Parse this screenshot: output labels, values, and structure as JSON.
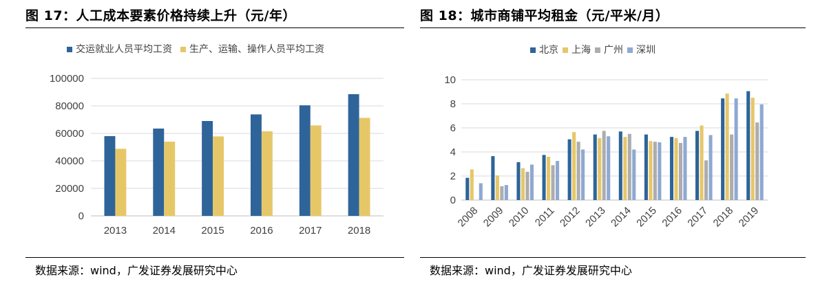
{
  "figures": [
    {
      "title": "图 17：人工成本要素价格持续上升（元/年）",
      "source": "数据来源：wind，广发证券发展研究中心"
    },
    {
      "title": "图 18：城市商铺平均租金（元/平米/月）",
      "source": "数据来源：wind，广发证券发展研究中心"
    }
  ],
  "chart_data": [
    {
      "type": "bar",
      "categories": [
        "2013",
        "2014",
        "2015",
        "2016",
        "2017",
        "2018"
      ],
      "series": [
        {
          "name": "交运就业人员平均工资",
          "color": "#2E6499",
          "values": [
            58000,
            63500,
            69000,
            73800,
            80400,
            88500
          ]
        },
        {
          "name": "生产、运输、操作人员平均工资",
          "color": "#E6C768",
          "values": [
            48800,
            54000,
            57800,
            61500,
            65800,
            71300
          ]
        }
      ],
      "ylim": [
        0,
        100000
      ],
      "yticks": [
        "0",
        "20000",
        "40000",
        "60000",
        "80000",
        "100000"
      ],
      "legend": "top",
      "grid": true
    },
    {
      "type": "bar",
      "categories": [
        "2008",
        "2009",
        "2010",
        "2011",
        "2012",
        "2013",
        "2014",
        "2015",
        "2016",
        "2017",
        "2018",
        "2019"
      ],
      "series": [
        {
          "name": "北京",
          "color": "#2E6499",
          "values": [
            1.85,
            3.65,
            3.15,
            3.75,
            5.05,
            5.45,
            5.7,
            5.45,
            5.25,
            5.75,
            8.45,
            9.05
          ]
        },
        {
          "name": "上海",
          "color": "#E6C768",
          "values": [
            2.55,
            2.05,
            2.65,
            3.6,
            5.65,
            5.15,
            5.25,
            4.9,
            5.15,
            6.2,
            8.85,
            8.5
          ]
        },
        {
          "name": "广州",
          "color": "#ADADAD",
          "values": [
            0.0,
            1.15,
            2.35,
            2.9,
            4.85,
            5.75,
            5.5,
            4.85,
            4.75,
            3.3,
            5.45,
            6.45
          ]
        },
        {
          "name": "深圳",
          "color": "#8EA9D2",
          "values": [
            1.4,
            1.25,
            2.95,
            3.25,
            4.2,
            5.3,
            4.2,
            4.8,
            5.25,
            5.4,
            8.45,
            7.95
          ]
        }
      ],
      "ylim": [
        0,
        10
      ],
      "yticks": [
        "0",
        "2",
        "4",
        "6",
        "8",
        "10"
      ],
      "legend": "top",
      "grid": true
    }
  ]
}
